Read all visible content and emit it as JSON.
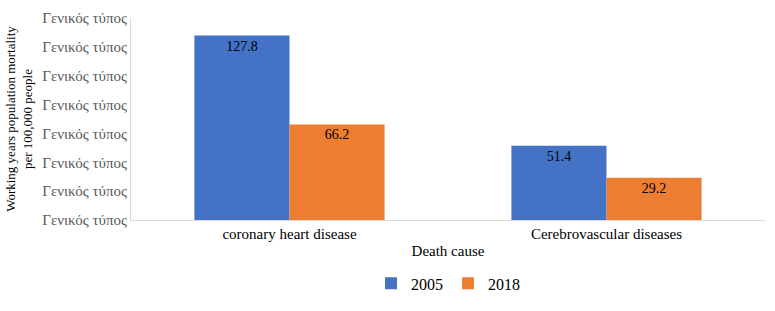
{
  "chart_data": {
    "type": "bar",
    "categories": [
      "coronary heart disease",
      "Cerebrovascular diseases"
    ],
    "series": [
      {
        "name": "2005",
        "color": "#4472c4",
        "values": [
          127.8,
          51.4
        ]
      },
      {
        "name": "2018",
        "color": "#ed7d31",
        "values": [
          66.2,
          29.2
        ]
      }
    ],
    "x_label": "Death cause",
    "y_label": "Working years population mortality per 100,000 people",
    "ylim": [
      0,
      140
    ],
    "yticks": [
      {
        "value": 0,
        "label": "Γενικός τύπος"
      },
      {
        "value": 20,
        "label": "Γενικός τύπος"
      },
      {
        "value": 40,
        "label": "Γενικός τύπος"
      },
      {
        "value": 60,
        "label": "Γενικός τύπος"
      },
      {
        "value": 80,
        "label": "Γενικός τύπος"
      },
      {
        "value": 100,
        "label": "Γενικός τύπος"
      },
      {
        "value": 120,
        "label": "Γενικός τύπος"
      },
      {
        "value": 140,
        "label": "Γενικός τύπος"
      }
    ],
    "grid": false,
    "legend": "bottom",
    "data_labels": true
  }
}
